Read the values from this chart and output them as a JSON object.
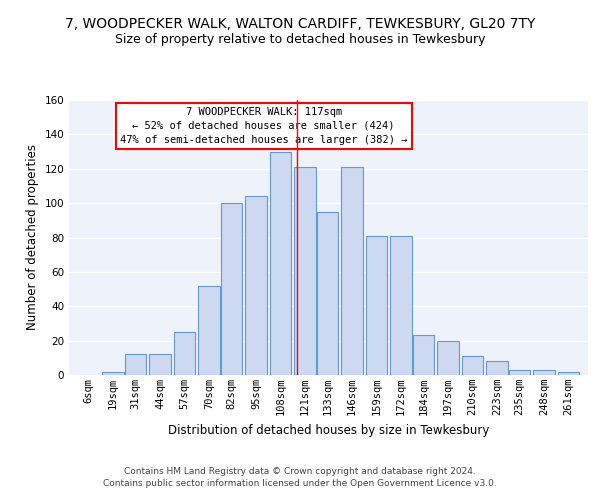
{
  "title": "7, WOODPECKER WALK, WALTON CARDIFF, TEWKESBURY, GL20 7TY",
  "subtitle": "Size of property relative to detached houses in Tewkesbury",
  "xlabel": "Distribution of detached houses by size in Tewkesbury",
  "ylabel": "Number of detached properties",
  "bins": [
    6,
    19,
    31,
    44,
    57,
    70,
    82,
    95,
    108,
    121,
    133,
    146,
    159,
    172,
    184,
    197,
    210,
    223,
    235,
    248,
    261
  ],
  "counts": [
    0,
    2,
    12,
    12,
    25,
    52,
    100,
    104,
    130,
    121,
    95,
    121,
    81,
    81,
    23,
    20,
    11,
    8,
    3,
    3,
    2
  ],
  "bar_color": "#ccd9f0",
  "bar_edge_color": "#6699cc",
  "vline_x": 117,
  "vline_color": "red",
  "annotation_text": "7 WOODPECKER WALK: 117sqm\n← 52% of detached houses are smaller (424)\n47% of semi-detached houses are larger (382) →",
  "annotation_box_color": "white",
  "annotation_box_edge": "red",
  "bg_color": "#eef2fb",
  "grid_color": "#ffffff",
  "ylim": [
    0,
    160
  ],
  "footnote": "Contains HM Land Registry data © Crown copyright and database right 2024.\nContains public sector information licensed under the Open Government Licence v3.0.",
  "title_fontsize": 10,
  "subtitle_fontsize": 9,
  "ylabel_fontsize": 8.5,
  "xlabel_fontsize": 8.5,
  "tick_fontsize": 7.5,
  "annotation_fontsize": 7.5,
  "footnote_fontsize": 6.5
}
